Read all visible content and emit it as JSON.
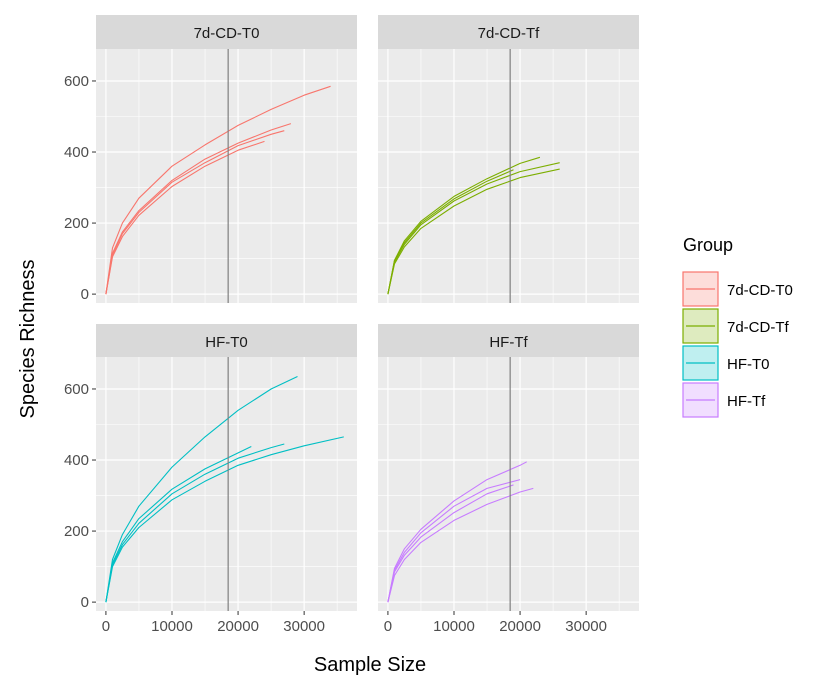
{
  "colors": {
    "panel_bg": "#ebebeb",
    "grid_major": "#ffffff",
    "strip_bg": "#d9d9d9",
    "vline": "#7f7f7f",
    "tick_text": "#4d4d4d",
    "tick_mark": "#333333"
  },
  "chart_data": {
    "type": "line",
    "kind": "rarefaction curves, faceted 2x2 by group",
    "xlabel": "Sample Size",
    "ylabel": "Species Richness",
    "xlim": [
      -1500,
      38000
    ],
    "ylim": [
      -25,
      690
    ],
    "x_ticks": [
      0,
      10000,
      20000,
      30000
    ],
    "x_tick_labels": [
      "0",
      "10000",
      "20000",
      "30000"
    ],
    "y_ticks": [
      0,
      200,
      400,
      600
    ],
    "y_tick_labels": [
      "0",
      "200",
      "400",
      "600"
    ],
    "vline_x": 18500,
    "grid": true,
    "legend": {
      "title": "Group",
      "position": "right",
      "entries": [
        {
          "label": "7d-CD-T0",
          "color": "#F8766D"
        },
        {
          "label": "7d-CD-Tf",
          "color": "#7CAE00"
        },
        {
          "label": "HF-T0",
          "color": "#00BFC4"
        },
        {
          "label": "HF-Tf",
          "color": "#C77CFF"
        }
      ]
    },
    "panels": [
      {
        "strip": "7d-CD-T0",
        "color": "#F8766D",
        "series": [
          {
            "x": [
              0,
              1000,
              2500,
              5000,
              10000,
              15000,
              20000,
              25000,
              30000,
              34000
            ],
            "y": [
              0,
              130,
              200,
              270,
              360,
              420,
              475,
              520,
              560,
              585
            ]
          },
          {
            "x": [
              0,
              1000,
              2500,
              5000,
              10000,
              15000,
              20000,
              25000,
              28000
            ],
            "y": [
              0,
              115,
              175,
              235,
              320,
              380,
              425,
              462,
              480
            ]
          },
          {
            "x": [
              0,
              1000,
              2500,
              5000,
              10000,
              15000,
              20000,
              25000,
              27000
            ],
            "y": [
              0,
              110,
              170,
              230,
              315,
              370,
              418,
              450,
              460
            ]
          },
          {
            "x": [
              0,
              1000,
              2500,
              5000,
              10000,
              15000,
              20000,
              24000
            ],
            "y": [
              0,
              105,
              162,
              222,
              303,
              360,
              405,
              430
            ]
          }
        ]
      },
      {
        "strip": "7d-CD-Tf",
        "color": "#7CAE00",
        "series": [
          {
            "x": [
              0,
              1000,
              2500,
              5000,
              10000,
              15000,
              20000,
              23000
            ],
            "y": [
              0,
              95,
              150,
              205,
              275,
              325,
              368,
              385
            ]
          },
          {
            "x": [
              0,
              1000,
              2500,
              5000,
              10000,
              15000,
              20000,
              26000
            ],
            "y": [
              0,
              90,
              140,
              195,
              262,
              310,
              345,
              370
            ]
          },
          {
            "x": [
              0,
              1000,
              2500,
              5000,
              10000,
              15000,
              20000,
              26000
            ],
            "y": [
              0,
              85,
              133,
              185,
              248,
              295,
              328,
              352
            ]
          },
          {
            "x": [
              0,
              1000,
              2500,
              5000,
              10000,
              15000,
              19000
            ],
            "y": [
              0,
              95,
              145,
              200,
              268,
              318,
              350
            ]
          }
        ]
      },
      {
        "strip": "HF-T0",
        "color": "#00BFC4",
        "series": [
          {
            "x": [
              0,
              1000,
              2500,
              5000,
              10000,
              15000,
              20000,
              25000,
              29000
            ],
            "y": [
              0,
              120,
              190,
              270,
              380,
              465,
              540,
              600,
              635
            ]
          },
          {
            "x": [
              0,
              1000,
              2500,
              5000,
              10000,
              15000,
              20000,
              25000,
              30000,
              36000
            ],
            "y": [
              0,
              100,
              155,
              210,
              288,
              340,
              385,
              415,
              440,
              465
            ]
          },
          {
            "x": [
              0,
              1000,
              2500,
              5000,
              10000,
              15000,
              20000,
              22000
            ],
            "y": [
              0,
              110,
              170,
              235,
              318,
              375,
              420,
              438
            ]
          },
          {
            "x": [
              0,
              1000,
              2500,
              5000,
              10000,
              15000,
              20000,
              25000,
              27000
            ],
            "y": [
              0,
              105,
              162,
              222,
              305,
              360,
              405,
              435,
              445
            ]
          }
        ]
      },
      {
        "strip": "HF-Tf",
        "color": "#C77CFF",
        "series": [
          {
            "x": [
              0,
              1000,
              2500,
              5000,
              10000,
              15000,
              20000,
              21000
            ],
            "y": [
              0,
              95,
              150,
              205,
              285,
              345,
              385,
              395
            ]
          },
          {
            "x": [
              0,
              1000,
              2500,
              5000,
              10000,
              15000,
              20000,
              22000
            ],
            "y": [
              0,
              75,
              120,
              168,
              230,
              275,
              310,
              320
            ]
          },
          {
            "x": [
              0,
              1000,
              2500,
              5000,
              10000,
              15000,
              20000
            ],
            "y": [
              0,
              90,
              140,
              195,
              270,
              320,
              345
            ]
          },
          {
            "x": [
              0,
              1000,
              2500,
              5000,
              10000,
              15000,
              19000
            ],
            "y": [
              0,
              85,
              132,
              183,
              252,
              305,
              330
            ]
          }
        ]
      }
    ]
  }
}
